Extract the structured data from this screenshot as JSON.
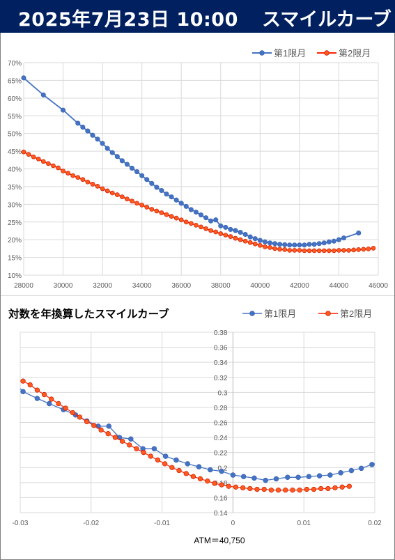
{
  "header": {
    "date": "2025年7月23日 10:00",
    "title": "スマイルカーブ"
  },
  "colors": {
    "series1": "#4472c4",
    "series2": "#ff2200",
    "series2_fill": "#ff5a1f",
    "header_bg": "#002060"
  },
  "chart_data": [
    {
      "type": "line",
      "title": "",
      "xlabel": "",
      "ylabel": "",
      "xlim": [
        28000,
        46000
      ],
      "ylim": [
        10,
        70
      ],
      "x_ticks": [
        "28000",
        "30000",
        "32000",
        "34000",
        "36000",
        "38000",
        "40000",
        "42000",
        "44000",
        "46000"
      ],
      "y_ticks": [
        "10%",
        "15%",
        "20%",
        "25%",
        "30%",
        "35%",
        "40%",
        "45%",
        "50%",
        "55%",
        "60%",
        "65%",
        "70%"
      ],
      "grid": true,
      "legend": "top-right",
      "series": [
        {
          "name": "第1限月",
          "x": [
            28000,
            29000,
            30000,
            30750,
            31000,
            31250,
            31500,
            31750,
            32000,
            32250,
            32500,
            32750,
            33000,
            33250,
            33500,
            33750,
            34000,
            34250,
            34500,
            34750,
            35000,
            35250,
            35500,
            35750,
            36000,
            36250,
            36500,
            36750,
            37000,
            37250,
            37500,
            37750,
            38000,
            38250,
            38500,
            38750,
            39000,
            39250,
            39500,
            39750,
            40000,
            40250,
            40500,
            40750,
            41000,
            41250,
            41500,
            41750,
            42000,
            42250,
            42500,
            42750,
            43000,
            43250,
            43500,
            43750,
            44000,
            44250,
            45000
          ],
          "values": [
            65.7,
            60.9,
            56.6,
            52.9,
            51.8,
            50.7,
            49.5,
            48.4,
            47.2,
            45.8,
            44.6,
            43.5,
            42.3,
            41.3,
            40.2,
            39.2,
            38.1,
            37.0,
            35.9,
            34.8,
            33.9,
            32.9,
            32.1,
            31.2,
            30.3,
            29.4,
            28.5,
            27.8,
            27.0,
            26.2,
            25.3,
            25.6,
            23.9,
            23.5,
            22.9,
            22.6,
            22.1,
            21.5,
            20.8,
            20.3,
            19.8,
            19.4,
            19.1,
            18.9,
            18.7,
            18.6,
            18.5,
            18.5,
            18.5,
            18.5,
            18.7,
            18.7,
            18.9,
            19.1,
            19.4,
            19.6,
            20.0,
            20.5,
            21.9
          ]
        },
        {
          "name": "第2限月",
          "x": [
            28000,
            28250,
            28500,
            28750,
            29000,
            29250,
            29500,
            29750,
            30000,
            30250,
            30500,
            30750,
            31000,
            31250,
            31500,
            31750,
            32000,
            32250,
            32500,
            32750,
            33000,
            33250,
            33500,
            33750,
            34000,
            34250,
            34500,
            34750,
            35000,
            35250,
            35500,
            35750,
            36000,
            36250,
            36500,
            36750,
            37000,
            37250,
            37500,
            37750,
            38000,
            38250,
            38500,
            38750,
            39000,
            39250,
            39500,
            39750,
            40000,
            40250,
            40500,
            40750,
            41000,
            41250,
            41500,
            41750,
            42000,
            42250,
            42500,
            42750,
            43000,
            43250,
            43500,
            43750,
            44000,
            44250,
            44500,
            44750,
            45000,
            45250,
            45500,
            45750
          ],
          "values": [
            44.8,
            44.1,
            43.4,
            42.8,
            42.1,
            41.5,
            40.9,
            40.3,
            39.4,
            38.8,
            38.1,
            37.6,
            37.0,
            36.3,
            35.7,
            35.1,
            34.4,
            33.8,
            33.2,
            32.7,
            32.1,
            31.5,
            30.9,
            30.3,
            29.8,
            29.2,
            28.6,
            28.1,
            27.6,
            27.1,
            26.6,
            26.1,
            25.6,
            25.0,
            24.6,
            24.1,
            23.6,
            23.1,
            22.6,
            22.2,
            21.7,
            21.3,
            20.9,
            20.4,
            20.0,
            19.6,
            19.2,
            18.8,
            18.4,
            18.0,
            17.8,
            17.5,
            17.3,
            17.2,
            17.0,
            17.0,
            17.0,
            16.9,
            16.9,
            16.9,
            16.9,
            16.9,
            16.9,
            16.9,
            17.0,
            17.0,
            17.0,
            17.1,
            17.2,
            17.3,
            17.4,
            17.6
          ]
        }
      ]
    },
    {
      "type": "scatter",
      "title": "対数を年換算したスマイルカーブ",
      "xlabel": "ATM＝40,750",
      "ylabel": "",
      "xlim": [
        -0.03,
        0.02
      ],
      "ylim": [
        0.14,
        0.38
      ],
      "x_ticks": [
        "-0.03",
        "-0.02",
        "-0.01",
        "0",
        "0.01",
        "0.02"
      ],
      "y_ticks": [
        "0.14",
        "0.16",
        "0.18",
        "0.2",
        "0.22",
        "0.24",
        "0.26",
        "0.28",
        "0.3",
        "0.32",
        "0.34",
        "0.36",
        "0.38"
      ],
      "grid": true,
      "legend": "top-right",
      "series": [
        {
          "name": "第1限月",
          "x": [
            -0.0296,
            -0.0276,
            -0.0259,
            -0.0239,
            -0.0222,
            -0.0206,
            -0.019,
            -0.0175,
            -0.016,
            -0.0144,
            -0.0127,
            -0.0111,
            -0.0095,
            -0.008,
            -0.0064,
            -0.0048,
            -0.0032,
            -0.0016,
            0.0,
            0.0015,
            0.003,
            0.0046,
            0.0061,
            0.0077,
            0.0092,
            0.0107,
            0.0122,
            0.0137,
            0.0152,
            0.0167,
            0.0181,
            0.0196
          ],
          "values": [
            0.301,
            0.292,
            0.285,
            0.277,
            0.27,
            0.262,
            0.255,
            0.255,
            0.24,
            0.238,
            0.225,
            0.225,
            0.215,
            0.21,
            0.205,
            0.201,
            0.197,
            0.195,
            0.19,
            0.188,
            0.186,
            0.183,
            0.185,
            0.187,
            0.187,
            0.188,
            0.189,
            0.19,
            0.193,
            0.196,
            0.199,
            0.204
          ]
        },
        {
          "name": "第2限月",
          "x": [
            -0.0296,
            -0.0286,
            -0.0276,
            -0.0266,
            -0.0256,
            -0.0246,
            -0.0236,
            -0.0226,
            -0.0216,
            -0.0206,
            -0.0196,
            -0.0186,
            -0.0176,
            -0.0166,
            -0.0156,
            -0.0146,
            -0.0136,
            -0.0126,
            -0.0116,
            -0.0106,
            -0.0096,
            -0.0086,
            -0.0076,
            -0.0066,
            -0.0056,
            -0.0046,
            -0.0036,
            -0.0026,
            -0.0016,
            -0.0006,
            0.0004,
            0.0014,
            0.0024,
            0.0034,
            0.0044,
            0.0054,
            0.0064,
            0.0074,
            0.0084,
            0.0094,
            0.0104,
            0.0114,
            0.0124,
            0.0134,
            0.0144,
            0.0154,
            0.0164
          ],
          "values": [
            0.315,
            0.31,
            0.303,
            0.297,
            0.291,
            0.285,
            0.279,
            0.273,
            0.267,
            0.261,
            0.256,
            0.25,
            0.245,
            0.24,
            0.235,
            0.23,
            0.225,
            0.22,
            0.215,
            0.21,
            0.205,
            0.2,
            0.196,
            0.192,
            0.188,
            0.185,
            0.182,
            0.179,
            0.177,
            0.175,
            0.174,
            0.173,
            0.172,
            0.171,
            0.171,
            0.17,
            0.17,
            0.17,
            0.17,
            0.17,
            0.171,
            0.171,
            0.172,
            0.172,
            0.173,
            0.174,
            0.175
          ]
        }
      ]
    }
  ]
}
